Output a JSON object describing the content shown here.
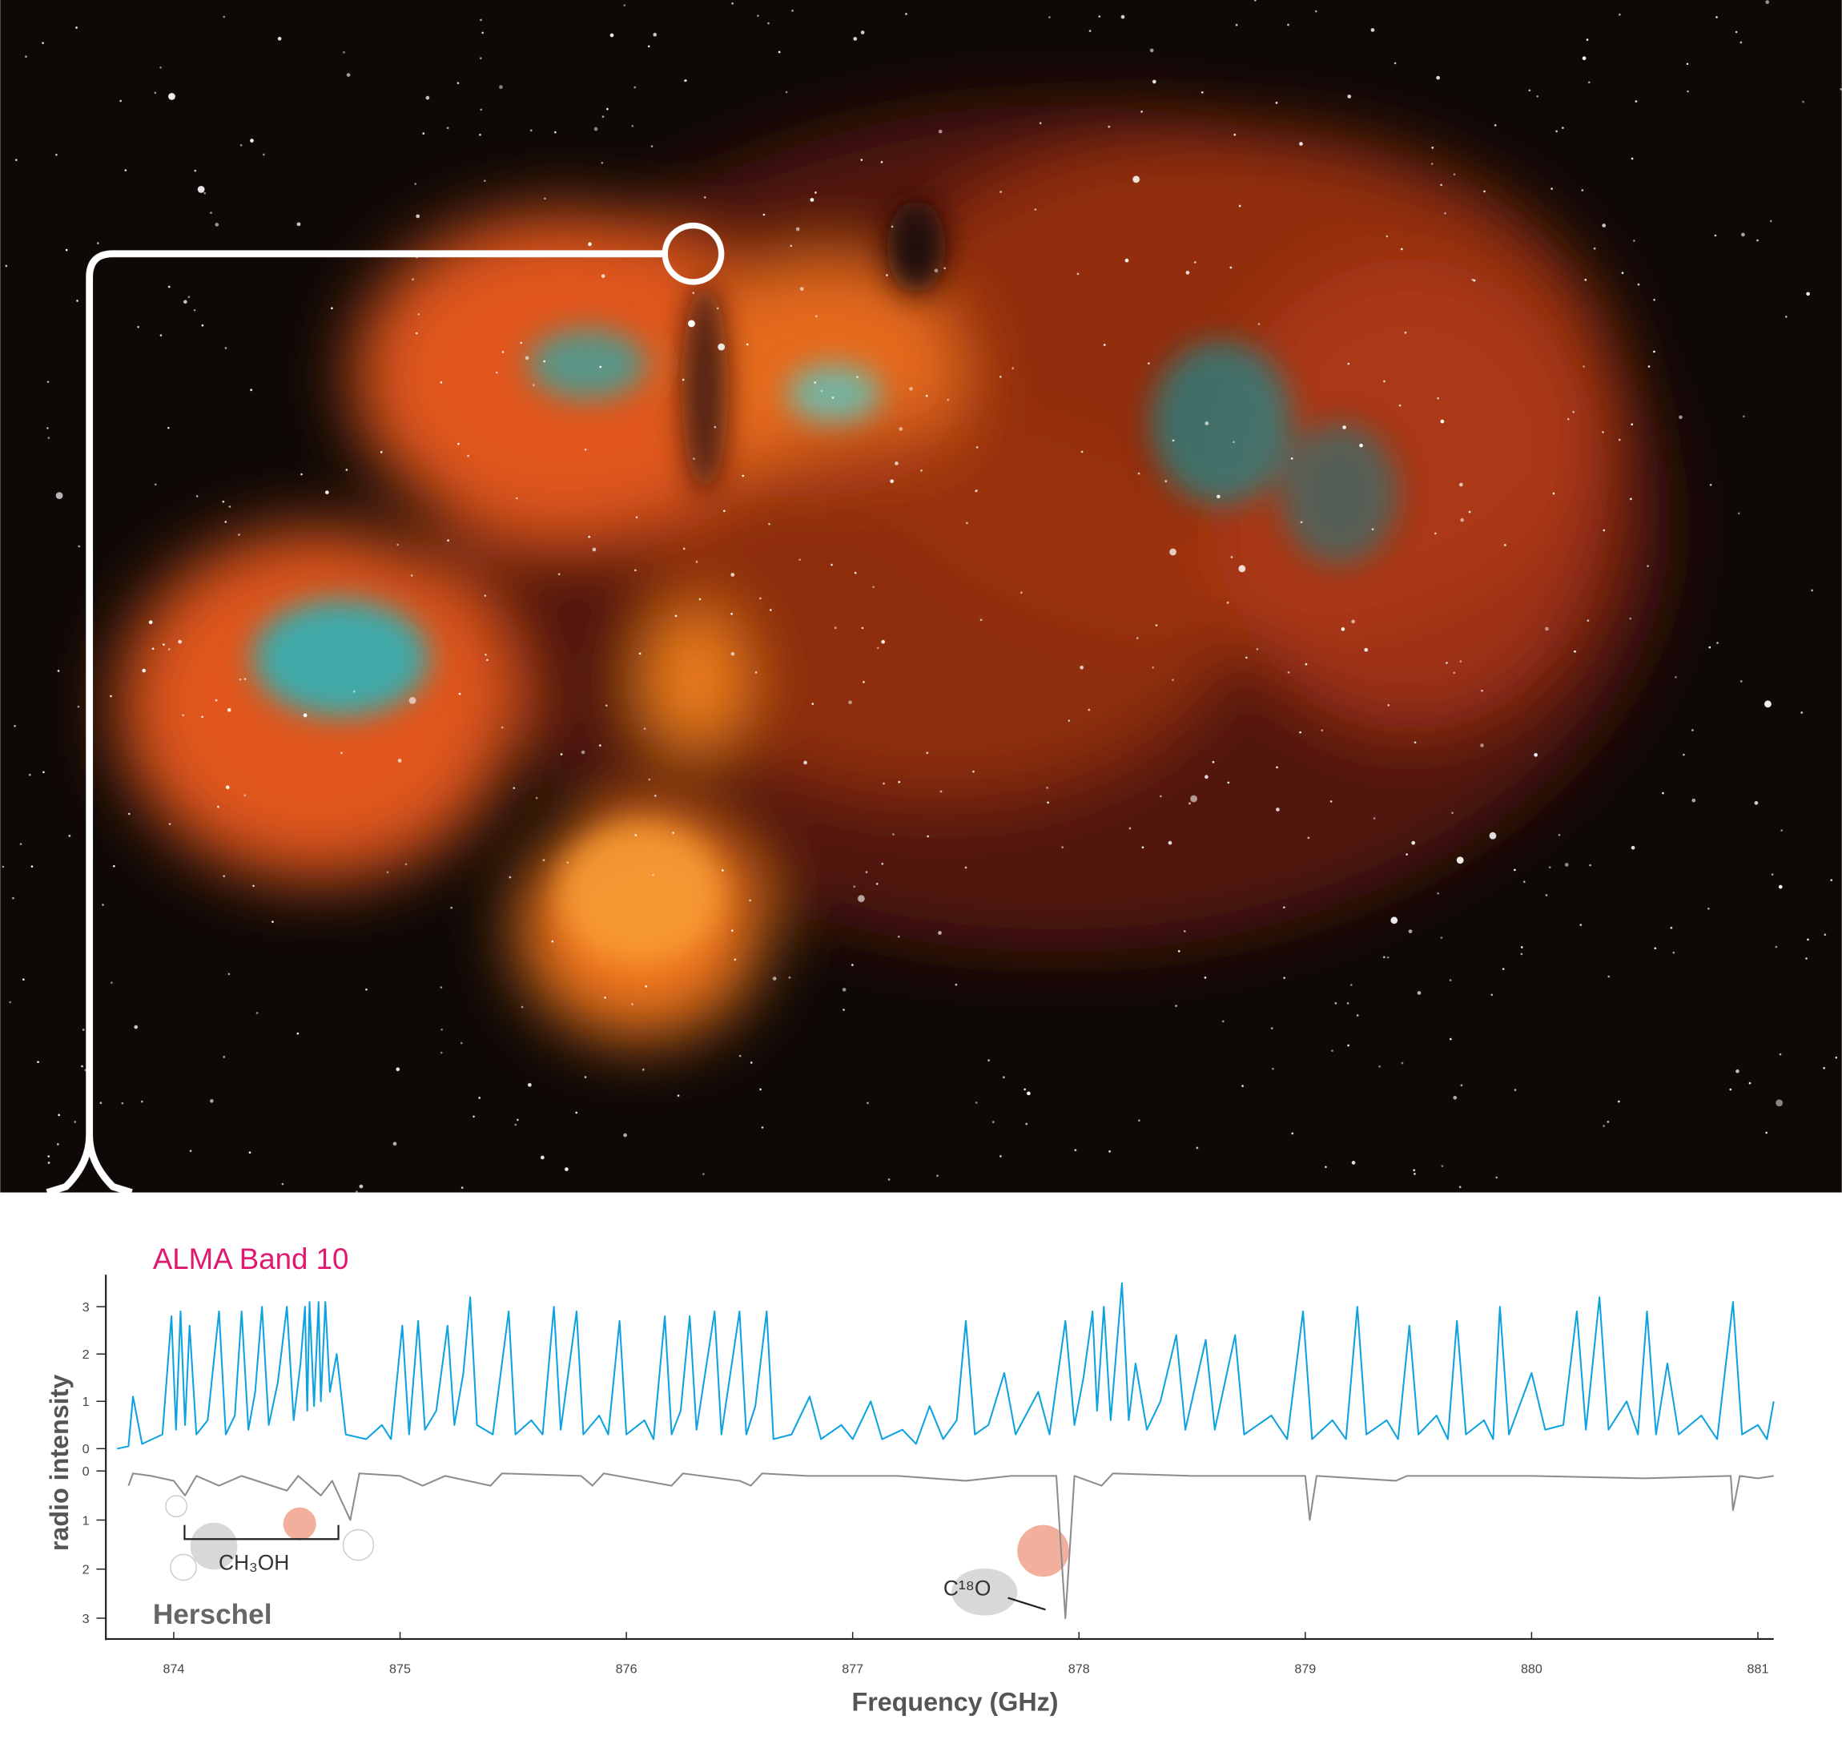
{
  "chart_data": {
    "type": "line",
    "ylabel": "radio intensity",
    "xlabel": "Frequency (GHz)",
    "xlim": [
      873.7,
      881.07
    ],
    "xticks": [
      874,
      875,
      876,
      877,
      878,
      879,
      880,
      881
    ],
    "ylim": [
      0,
      3.6
    ],
    "yticks": [
      0,
      1,
      2,
      3
    ],
    "y2lim": [
      0,
      3.4
    ],
    "y2ticks": [
      0,
      1,
      2,
      3
    ],
    "y2_inverted": true,
    "annotations": [
      {
        "text": "CH₃OH"
      },
      {
        "text": "C¹⁸O"
      }
    ],
    "series": [
      {
        "name": "ALMA Band 10",
        "color": "#0ea3e0",
        "axis": "y",
        "x": [
          873.75,
          873.8,
          873.82,
          873.86,
          873.95,
          873.99,
          874.01,
          874.03,
          874.05,
          874.07,
          874.1,
          874.15,
          874.2,
          874.23,
          874.27,
          874.3,
          874.33,
          874.36,
          874.39,
          874.42,
          874.46,
          874.5,
          874.53,
          874.56,
          874.58,
          874.59,
          874.6,
          874.62,
          874.64,
          874.65,
          874.67,
          874.69,
          874.72,
          874.76,
          874.85,
          874.92,
          874.96,
          875.01,
          875.04,
          875.08,
          875.11,
          875.16,
          875.21,
          875.24,
          875.28,
          875.31,
          875.34,
          875.41,
          875.48,
          875.51,
          875.58,
          875.63,
          875.68,
          875.71,
          875.78,
          875.81,
          875.88,
          875.92,
          875.97,
          876.0,
          876.08,
          876.12,
          876.17,
          876.2,
          876.24,
          876.28,
          876.31,
          876.39,
          876.42,
          876.5,
          876.53,
          876.57,
          876.62,
          876.65,
          876.73,
          876.81,
          876.86,
          876.95,
          877.0,
          877.08,
          877.13,
          877.22,
          877.28,
          877.34,
          877.4,
          877.46,
          877.5,
          877.54,
          877.6,
          877.67,
          877.72,
          877.82,
          877.87,
          877.94,
          877.98,
          878.02,
          878.06,
          878.08,
          878.11,
          878.14,
          878.19,
          878.22,
          878.25,
          878.3,
          878.36,
          878.43,
          878.47,
          878.56,
          878.6,
          878.69,
          878.73,
          878.85,
          878.92,
          878.99,
          879.03,
          879.12,
          879.18,
          879.23,
          879.27,
          879.36,
          879.41,
          879.46,
          879.5,
          879.58,
          879.63,
          879.67,
          879.71,
          879.79,
          879.83,
          879.86,
          879.9,
          880.0,
          880.06,
          880.14,
          880.2,
          880.24,
          880.3,
          880.34,
          880.42,
          880.47,
          880.51,
          880.55,
          880.6,
          880.65,
          880.75,
          880.82,
          880.89,
          880.93,
          881.0,
          881.04,
          881.07
        ],
        "values": [
          0,
          0.05,
          1.1,
          0.1,
          0.3,
          2.8,
          0.4,
          2.9,
          0.5,
          2.6,
          0.3,
          0.6,
          2.9,
          0.3,
          0.7,
          2.9,
          0.4,
          1.2,
          3.0,
          0.5,
          1.4,
          3.0,
          0.6,
          1.8,
          3.0,
          0.8,
          3.1,
          0.9,
          3.1,
          1.0,
          3.1,
          1.2,
          2.0,
          0.3,
          0.2,
          0.5,
          0.2,
          2.6,
          0.3,
          2.7,
          0.4,
          0.8,
          2.6,
          0.5,
          1.6,
          3.2,
          0.5,
          0.3,
          2.9,
          0.3,
          0.6,
          0.3,
          3.0,
          0.4,
          2.9,
          0.3,
          0.7,
          0.3,
          2.7,
          0.3,
          0.6,
          0.2,
          2.8,
          0.3,
          0.8,
          2.8,
          0.4,
          2.9,
          0.3,
          2.9,
          0.3,
          0.9,
          2.9,
          0.2,
          0.3,
          1.1,
          0.2,
          0.5,
          0.2,
          1.0,
          0.2,
          0.4,
          0.1,
          0.9,
          0.2,
          0.6,
          2.7,
          0.3,
          0.5,
          1.6,
          0.3,
          1.2,
          0.3,
          2.7,
          0.5,
          1.5,
          2.9,
          0.8,
          3.0,
          0.6,
          3.5,
          0.6,
          1.8,
          0.4,
          1.0,
          2.4,
          0.4,
          2.3,
          0.4,
          2.4,
          0.3,
          0.7,
          0.2,
          2.9,
          0.2,
          0.6,
          0.2,
          3.0,
          0.3,
          0.6,
          0.2,
          2.6,
          0.3,
          0.7,
          0.2,
          2.7,
          0.3,
          0.6,
          0.2,
          3.0,
          0.3,
          1.6,
          0.4,
          0.5,
          2.9,
          0.4,
          3.2,
          0.4,
          1.0,
          0.3,
          2.9,
          0.3,
          1.8,
          0.3,
          0.7,
          0.2,
          3.1,
          0.3,
          0.5,
          0.2,
          1.0
        ]
      },
      {
        "name": "Herschel",
        "color": "#8c8c8c",
        "axis": "y2",
        "x": [
          873.8,
          873.82,
          873.9,
          874.0,
          874.05,
          874.1,
          874.2,
          874.3,
          874.5,
          874.55,
          874.65,
          874.7,
          874.78,
          874.82,
          875.0,
          875.1,
          875.2,
          875.4,
          875.45,
          875.8,
          875.85,
          875.9,
          876.2,
          876.25,
          876.5,
          876.55,
          876.6,
          876.8,
          877.2,
          877.5,
          877.7,
          877.9,
          877.94,
          877.98,
          878.1,
          878.15,
          878.5,
          879.0,
          879.02,
          879.05,
          879.4,
          879.45,
          880.0,
          880.5,
          880.88,
          880.89,
          880.92,
          881.0,
          881.07
        ],
        "values": [
          0.3,
          0.05,
          0.1,
          0.2,
          0.5,
          0.1,
          0.3,
          0.1,
          0.4,
          0.1,
          0.5,
          0.2,
          1.0,
          0.05,
          0.1,
          0.3,
          0.1,
          0.3,
          0.05,
          0.1,
          0.3,
          0.05,
          0.3,
          0.05,
          0.2,
          0.3,
          0.05,
          0.1,
          0.1,
          0.2,
          0.1,
          0.1,
          3.0,
          0.1,
          0.3,
          0.05,
          0.1,
          0.1,
          1.0,
          0.1,
          0.2,
          0.1,
          0.1,
          0.15,
          0.1,
          0.8,
          0.1,
          0.15,
          0.1
        ]
      }
    ]
  }
}
